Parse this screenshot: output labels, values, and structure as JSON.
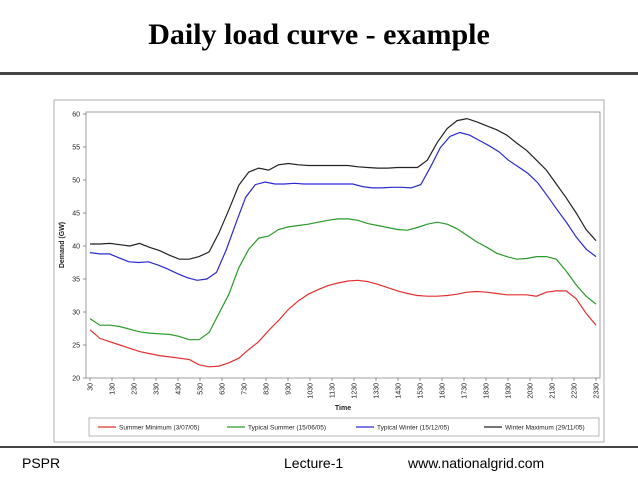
{
  "slide": {
    "title": "Daily load curve - example",
    "footer_left": "PSPR",
    "footer_center": "Lecture-1",
    "footer_right": "www.nationalgrid.com"
  },
  "chart_data": {
    "type": "line",
    "title": "",
    "xlabel": "Time",
    "ylabel": "Demand (GW)",
    "ylim": [
      20,
      60
    ],
    "yticks": [
      20,
      25,
      30,
      35,
      40,
      45,
      50,
      55,
      60
    ],
    "xticks": [
      "30",
      "130",
      "230",
      "330",
      "430",
      "530",
      "630",
      "730",
      "830",
      "930",
      "1030",
      "1130",
      "1230",
      "1330",
      "1430",
      "1530",
      "1630",
      "1730",
      "1830",
      "1930",
      "2030",
      "2130",
      "2230",
      "2330"
    ],
    "grid": false,
    "legend_position": "bottom",
    "series": [
      {
        "name": "Summer Minimum (3/07/05)",
        "color": "#e03030",
        "values": [
          27.3,
          26.0,
          25.5,
          25.0,
          24.5,
          24.0,
          23.7,
          23.4,
          23.2,
          23.0,
          22.8,
          22.0,
          21.7,
          21.8,
          22.3,
          23.0,
          24.3,
          25.5,
          27.2,
          28.7,
          30.4,
          31.7,
          32.7,
          33.4,
          34.0,
          34.4,
          34.7,
          34.8,
          34.6,
          34.2,
          33.7,
          33.2,
          32.8,
          32.5,
          32.4,
          32.4,
          32.5,
          32.7,
          33.0,
          33.1,
          33.0,
          32.8,
          32.6,
          32.6,
          32.6,
          32.4,
          33.0,
          33.2,
          33.2,
          32.0,
          29.8,
          28.0
        ]
      },
      {
        "name": "Typical Summer (15/06/05)",
        "color": "#2a9a2a",
        "values": [
          29.0,
          28.0,
          28.0,
          27.8,
          27.4,
          27.0,
          26.8,
          26.7,
          26.6,
          26.3,
          25.8,
          25.8,
          26.9,
          29.8,
          32.7,
          36.7,
          39.5,
          41.2,
          41.5,
          42.5,
          42.9,
          43.1,
          43.3,
          43.6,
          43.9,
          44.1,
          44.1,
          43.9,
          43.4,
          43.1,
          42.8,
          42.5,
          42.4,
          42.8,
          43.3,
          43.6,
          43.3,
          42.6,
          41.6,
          40.6,
          39.8,
          38.9,
          38.4,
          38.0,
          38.1,
          38.4,
          38.4,
          38.0,
          36.2,
          34.1,
          32.4,
          31.2
        ]
      },
      {
        "name": "Typical Winter (15/12/05)",
        "color": "#2a2ad0",
        "values": [
          39.0,
          38.8,
          38.8,
          38.2,
          37.6,
          37.5,
          37.6,
          37.1,
          36.5,
          35.8,
          35.2,
          34.8,
          35.0,
          36.0,
          39.4,
          43.5,
          47.4,
          49.3,
          49.7,
          49.4,
          49.4,
          49.5,
          49.4,
          49.4,
          49.4,
          49.4,
          49.4,
          49.4,
          49.0,
          48.8,
          48.8,
          48.9,
          48.9,
          48.8,
          49.3,
          52.0,
          54.9,
          56.6,
          57.2,
          56.8,
          56.0,
          55.2,
          54.3,
          53.0,
          52.0,
          51.0,
          49.6,
          47.6,
          45.5,
          43.5,
          41.3,
          39.5,
          38.4
        ]
      },
      {
        "name": "Winter Maximum (29/11/05)",
        "color": "#222222",
        "values": [
          40.3,
          40.3,
          40.4,
          40.2,
          40.0,
          40.4,
          39.8,
          39.3,
          38.6,
          38.0,
          38.0,
          38.4,
          39.1,
          42.0,
          45.5,
          49.2,
          51.2,
          51.8,
          51.5,
          52.3,
          52.5,
          52.3,
          52.2,
          52.2,
          52.2,
          52.2,
          52.2,
          52.0,
          51.9,
          51.8,
          51.8,
          51.9,
          51.9,
          51.9,
          53.0,
          55.7,
          57.8,
          59.0,
          59.3,
          58.8,
          58.2,
          57.6,
          56.8,
          55.6,
          54.5,
          53.0,
          51.5,
          49.4,
          47.3,
          45.0,
          42.5,
          40.8
        ]
      }
    ]
  }
}
